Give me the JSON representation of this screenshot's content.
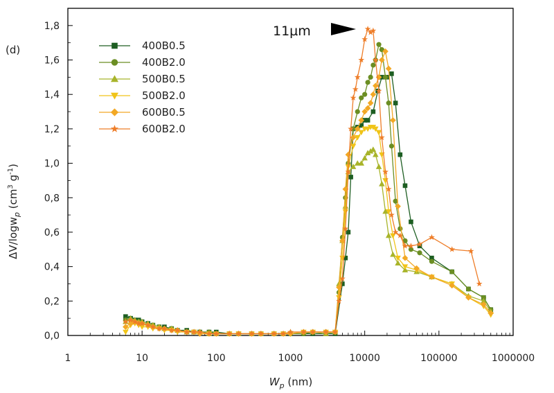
{
  "chart_data": {
    "type": "line",
    "panel_label": "(d)",
    "xlabel_symbol": "W",
    "xlabel_sub": "p",
    "xlabel_unit": " (nm)",
    "ylabel": "ΔV/logw",
    "ylabel_sub": "p",
    "ylabel_unit_a": " (cm",
    "ylabel_unit_b": "3",
    "ylabel_unit_c": " g",
    "ylabel_unit_d": "-1",
    "ylabel_unit_e": ")",
    "x_scale": "log",
    "xlim": [
      1,
      1000000
    ],
    "ylim": [
      0,
      1.9
    ],
    "x_ticks": [
      1,
      10,
      100,
      1000,
      10000,
      100000,
      1000000
    ],
    "x_tick_labels": [
      "1",
      "10",
      "100",
      "1000",
      "10000",
      "100000",
      "1000000"
    ],
    "y_ticks": [
      0,
      0.2,
      0.4,
      0.6,
      0.8,
      1.0,
      1.2,
      1.4,
      1.6,
      1.8
    ],
    "y_tick_labels": [
      "0,0",
      "0,2",
      "0,4",
      "0,6",
      "0,8",
      "1,0",
      "1,2",
      "1,4",
      "1,6",
      "1,8"
    ],
    "annotation": {
      "text": "11µm",
      "x": 11000,
      "y": 1.77,
      "marker": "left-pointing-triangle"
    },
    "legend_position": "top-left",
    "series": [
      {
        "name": "400B0.5",
        "color": "#1d5e22",
        "marker": "square",
        "x": [
          6,
          7,
          8,
          9,
          10,
          12,
          14,
          17,
          20,
          25,
          30,
          40,
          50,
          60,
          80,
          100,
          150,
          200,
          300,
          400,
          600,
          800,
          1000,
          1500,
          2000,
          3000,
          4000,
          5000,
          5500,
          6000,
          6500,
          7000,
          8000,
          9000,
          10000,
          11000,
          13000,
          15000,
          17000,
          20000,
          23000,
          26000,
          30000,
          35000,
          42000,
          55000,
          80000,
          150000,
          250000,
          400000,
          500000
        ],
        "y": [
          0.11,
          0.1,
          0.09,
          0.09,
          0.08,
          0.07,
          0.06,
          0.05,
          0.05,
          0.04,
          0.03,
          0.03,
          0.02,
          0.02,
          0.02,
          0.02,
          0.01,
          0.01,
          0.01,
          0.01,
          0.01,
          0.01,
          0.01,
          0.01,
          0.01,
          0.01,
          0.01,
          0.3,
          0.45,
          0.6,
          0.92,
          1.2,
          1.21,
          1.22,
          1.25,
          1.25,
          1.3,
          1.42,
          1.5,
          1.5,
          1.52,
          1.35,
          1.05,
          0.87,
          0.66,
          0.52,
          0.45,
          0.37,
          0.27,
          0.22,
          0.15
        ]
      },
      {
        "name": "400B2.0",
        "color": "#6b8e23",
        "marker": "circle",
        "x": [
          6,
          7,
          8,
          9,
          10,
          12,
          14,
          17,
          20,
          25,
          30,
          40,
          50,
          60,
          80,
          100,
          150,
          200,
          300,
          400,
          600,
          800,
          1000,
          1500,
          2000,
          3000,
          4000,
          4500,
          5000,
          5500,
          6000,
          7000,
          8000,
          9000,
          10000,
          11000,
          12000,
          13000,
          14000,
          15500,
          17000,
          19000,
          21000,
          23000,
          26000,
          30000,
          35000,
          42000,
          55000,
          80000,
          150000,
          250000,
          400000,
          500000
        ],
        "y": [
          0.09,
          0.09,
          0.08,
          0.08,
          0.07,
          0.06,
          0.06,
          0.05,
          0.04,
          0.04,
          0.03,
          0.02,
          0.02,
          0.02,
          0.02,
          0.01,
          0.01,
          0.01,
          0.01,
          0.01,
          0.01,
          0.01,
          0.01,
          0.01,
          0.02,
          0.02,
          0.02,
          0.25,
          0.57,
          0.8,
          1.0,
          1.2,
          1.3,
          1.38,
          1.4,
          1.47,
          1.5,
          1.57,
          1.6,
          1.69,
          1.66,
          1.5,
          1.35,
          1.1,
          0.78,
          0.62,
          0.55,
          0.5,
          0.48,
          0.43,
          0.37,
          0.27,
          0.22,
          0.15
        ]
      },
      {
        "name": "500B0.5",
        "color": "#a8b42a",
        "marker": "triangle-up",
        "x": [
          6,
          7,
          8,
          9,
          10,
          12,
          14,
          17,
          20,
          25,
          30,
          40,
          50,
          60,
          80,
          100,
          150,
          200,
          300,
          400,
          600,
          800,
          1000,
          1500,
          2000,
          3000,
          4000,
          4500,
          5000,
          5500,
          6000,
          7000,
          8000,
          9000,
          10000,
          11000,
          12000,
          13000,
          14000,
          15500,
          17000,
          19000,
          21000,
          24000,
          28000,
          35000,
          50000,
          80000,
          150000,
          250000,
          400000,
          500000
        ],
        "y": [
          0.08,
          0.1,
          0.09,
          0.08,
          0.08,
          0.07,
          0.06,
          0.05,
          0.04,
          0.04,
          0.03,
          0.02,
          0.02,
          0.02,
          0.01,
          0.01,
          0.01,
          0.01,
          0.01,
          0.01,
          0.01,
          0.01,
          0.02,
          0.02,
          0.02,
          0.01,
          0.02,
          0.3,
          0.55,
          0.75,
          0.95,
          0.98,
          1.0,
          1.0,
          1.03,
          1.06,
          1.07,
          1.08,
          1.05,
          0.98,
          0.88,
          0.72,
          0.58,
          0.47,
          0.42,
          0.38,
          0.37,
          0.34,
          0.3,
          0.23,
          0.2,
          0.14
        ]
      },
      {
        "name": "500B2.0",
        "color": "#f0c419",
        "marker": "triangle-down",
        "x": [
          6,
          7,
          8,
          9,
          10,
          12,
          14,
          17,
          20,
          25,
          30,
          40,
          50,
          60,
          80,
          100,
          150,
          200,
          300,
          400,
          600,
          800,
          1000,
          1500,
          2000,
          3000,
          4000,
          4500,
          5000,
          5500,
          6000,
          7000,
          8000,
          9000,
          10000,
          11000,
          12000,
          13000,
          14000,
          15500,
          17000,
          19000,
          21000,
          24000,
          28000,
          35000,
          50000,
          80000,
          150000,
          250000,
          400000,
          500000
        ],
        "y": [
          0.02,
          0.06,
          0.07,
          0.06,
          0.05,
          0.05,
          0.04,
          0.04,
          0.03,
          0.03,
          0.02,
          0.02,
          0.02,
          0.01,
          0.01,
          0.01,
          0.01,
          0.01,
          0.01,
          0.01,
          0.01,
          0.01,
          0.01,
          0.02,
          0.02,
          0.02,
          0.02,
          0.22,
          0.45,
          0.72,
          0.98,
          1.1,
          1.15,
          1.18,
          1.2,
          1.2,
          1.21,
          1.21,
          1.2,
          1.18,
          1.05,
          0.9,
          0.72,
          0.58,
          0.45,
          0.4,
          0.38,
          0.34,
          0.3,
          0.22,
          0.17,
          0.12
        ]
      },
      {
        "name": "600B0.5",
        "color": "#f2a825",
        "marker": "diamond",
        "x": [
          6,
          7,
          8,
          9,
          10,
          12,
          14,
          17,
          20,
          25,
          30,
          40,
          50,
          60,
          80,
          100,
          150,
          200,
          300,
          400,
          600,
          800,
          1000,
          1500,
          2000,
          3000,
          4000,
          4500,
          5000,
          5500,
          6000,
          7000,
          8000,
          9000,
          10000,
          11000,
          12000,
          13000,
          14000,
          15500,
          17000,
          19000,
          21000,
          24000,
          28000,
          35000,
          50000,
          80000,
          150000,
          250000,
          400000,
          500000
        ],
        "y": [
          0.05,
          0.07,
          0.08,
          0.07,
          0.07,
          0.06,
          0.05,
          0.04,
          0.04,
          0.03,
          0.03,
          0.02,
          0.02,
          0.01,
          0.01,
          0.01,
          0.01,
          0.01,
          0.01,
          0.01,
          0.01,
          0.01,
          0.01,
          0.02,
          0.02,
          0.02,
          0.02,
          0.28,
          0.55,
          0.85,
          1.05,
          1.15,
          1.2,
          1.25,
          1.3,
          1.32,
          1.35,
          1.4,
          1.45,
          1.5,
          1.6,
          1.65,
          1.55,
          1.25,
          0.75,
          0.45,
          0.39,
          0.34,
          0.29,
          0.22,
          0.18,
          0.13
        ]
      },
      {
        "name": "600B2.0",
        "color": "#ee7d28",
        "marker": "star",
        "x": [
          6,
          7,
          8,
          9,
          10,
          12,
          14,
          17,
          20,
          25,
          30,
          40,
          50,
          60,
          80,
          100,
          150,
          200,
          300,
          400,
          600,
          800,
          1000,
          1500,
          2000,
          3000,
          4000,
          4500,
          5000,
          5500,
          6000,
          6500,
          7000,
          7500,
          8000,
          9000,
          10000,
          11000,
          12000,
          13000,
          14000,
          15500,
          17000,
          19000,
          21000,
          23000,
          26000,
          30000,
          35000,
          42000,
          55000,
          80000,
          150000,
          270000,
          350000
        ],
        "y": [
          0.08,
          0.09,
          0.08,
          0.07,
          0.07,
          0.06,
          0.05,
          0.04,
          0.04,
          0.03,
          0.03,
          0.02,
          0.02,
          0.02,
          0.01,
          0.01,
          0.01,
          0.01,
          0.01,
          0.01,
          0.01,
          0.01,
          0.02,
          0.02,
          0.02,
          0.02,
          0.02,
          0.2,
          0.33,
          0.62,
          0.95,
          1.2,
          1.38,
          1.43,
          1.5,
          1.6,
          1.72,
          1.78,
          1.76,
          1.77,
          1.6,
          1.42,
          1.15,
          0.95,
          0.85,
          0.7,
          0.6,
          0.58,
          0.52,
          0.52,
          0.53,
          0.57,
          0.5,
          0.49,
          0.3
        ]
      }
    ]
  }
}
